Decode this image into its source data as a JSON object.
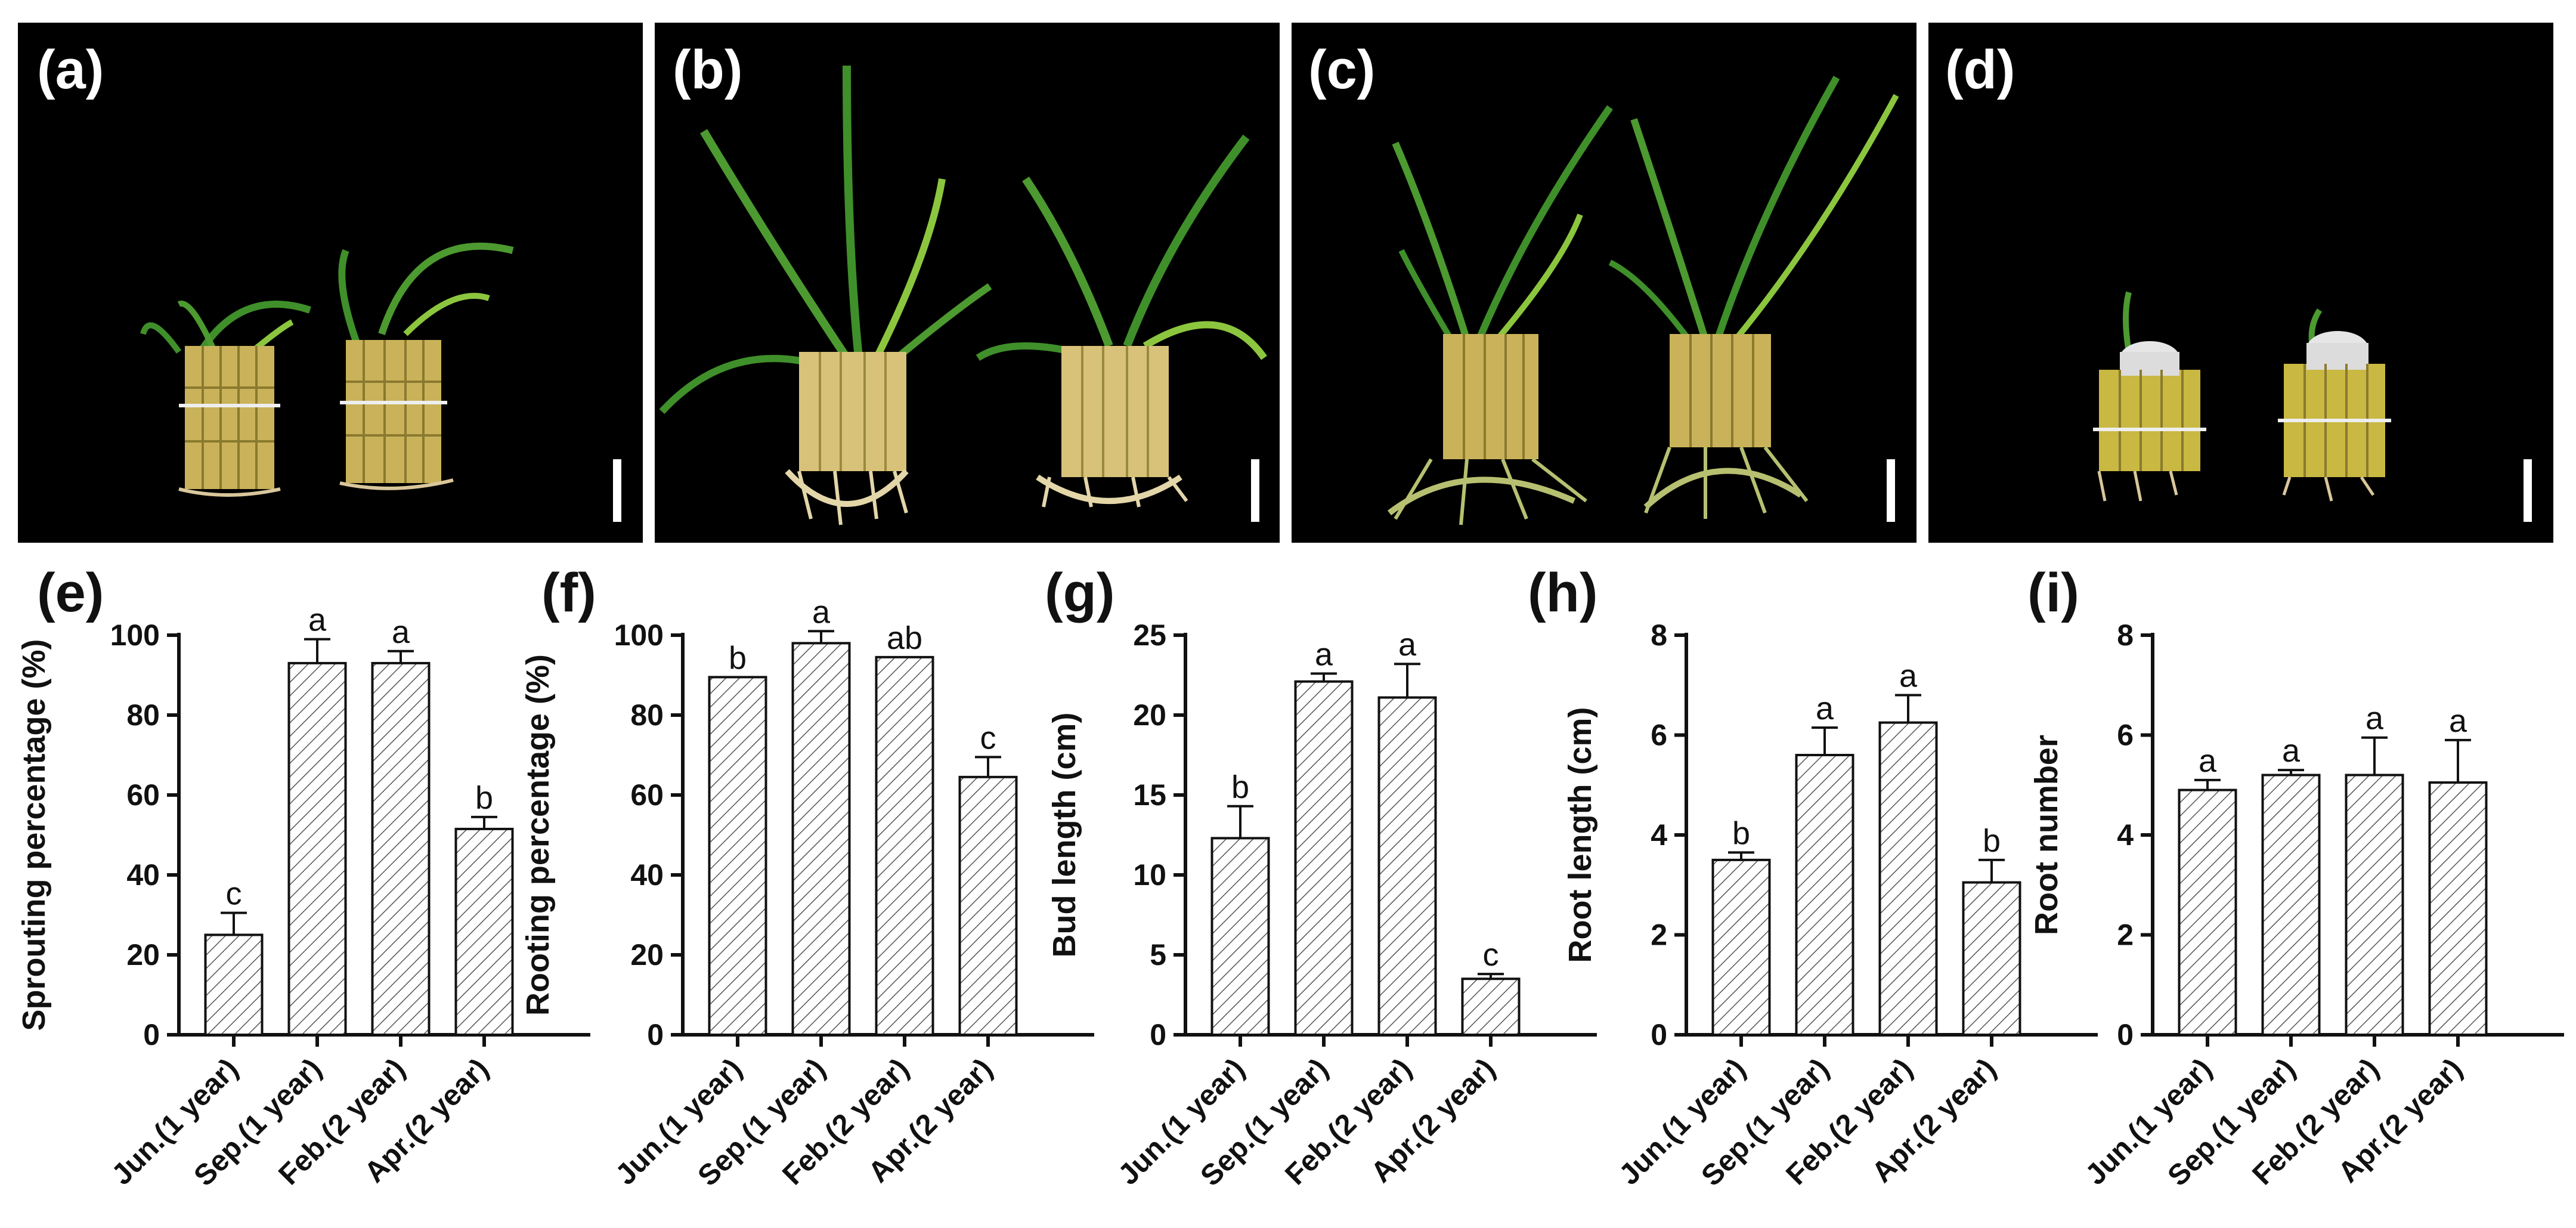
{
  "photos": [
    {
      "label": "(a)",
      "description_free": true
    },
    {
      "label": "(b)",
      "description_free": true
    },
    {
      "label": "(c)",
      "description_free": true
    },
    {
      "label": "(d)",
      "description_free": true
    }
  ],
  "colors": {
    "photo_bg": "#000000",
    "scale_bar": "#ffffff",
    "leaf_green": "#3f8f2a",
    "leaf_light": "#8cc63f",
    "cane_yellow": "#c9b25a",
    "cane_dark": "#8a7a2e",
    "root_tan": "#d9c79a",
    "bar_stroke": "#111111",
    "hatch": "#444444"
  },
  "chart_data": [
    {
      "type": "bar",
      "panel": "(e)",
      "categories": [
        "Jun.(1 year)",
        "Sep.(1 year)",
        "Feb.(2 year)",
        "Apr.(2 year)"
      ],
      "values": [
        25,
        93,
        93,
        51.5
      ],
      "errors": [
        5.5,
        6,
        3,
        3
      ],
      "letters": [
        "c",
        "a",
        "a",
        "b"
      ],
      "ylabel": "Sprouting percentage (%)",
      "ylim": [
        0,
        100
      ],
      "yticks": [
        0,
        20,
        40,
        60,
        80,
        100
      ]
    },
    {
      "type": "bar",
      "panel": "(f)",
      "categories": [
        "Jun.(1 year)",
        "Sep.(1 year)",
        "Feb.(2 year)",
        "Apr.(2 year)"
      ],
      "values": [
        89.5,
        98,
        94.5,
        64.5
      ],
      "errors": [
        0,
        3,
        0,
        5
      ],
      "letters": [
        "b",
        "a",
        "ab",
        "c"
      ],
      "ylabel": "Rooting percentage (%)",
      "ylim": [
        0,
        100
      ],
      "yticks": [
        0,
        20,
        40,
        60,
        80,
        100
      ]
    },
    {
      "type": "bar",
      "panel": "(g)",
      "categories": [
        "Jun.(1 year)",
        "Sep.(1 year)",
        "Feb.(2 year)",
        "Apr.(2 year)"
      ],
      "values": [
        12.3,
        22.1,
        21.1,
        3.5
      ],
      "errors": [
        2,
        0.5,
        2.1,
        0.3
      ],
      "letters": [
        "b",
        "a",
        "a",
        "c"
      ],
      "ylabel": "Bud length (cm)",
      "ylim": [
        0,
        25
      ],
      "yticks": [
        0,
        5,
        10,
        15,
        20,
        25
      ]
    },
    {
      "type": "bar",
      "panel": "(h)",
      "categories": [
        "Jun.(1 year)",
        "Sep.(1 year)",
        "Feb.(2 year)",
        "Apr.(2 year)"
      ],
      "values": [
        3.5,
        5.6,
        6.25,
        3.05
      ],
      "errors": [
        0.15,
        0.55,
        0.55,
        0.45
      ],
      "letters": [
        "b",
        "a",
        "a",
        "b"
      ],
      "ylabel": "Root length (cm)",
      "ylim": [
        0,
        8
      ],
      "yticks": [
        0,
        2,
        4,
        6,
        8
      ]
    },
    {
      "type": "bar",
      "panel": "(i)",
      "categories": [
        "Jun.(1 year)",
        "Sep.(1 year)",
        "Feb.(2 year)",
        "Apr.(2 year)"
      ],
      "values": [
        4.9,
        5.2,
        5.2,
        5.05
      ],
      "errors": [
        0.2,
        0.1,
        0.75,
        0.85
      ],
      "letters": [
        "a",
        "a",
        "a",
        "a"
      ],
      "ylabel": "Root number",
      "ylim": [
        0,
        8
      ],
      "yticks": [
        0,
        2,
        4,
        6,
        8
      ]
    }
  ]
}
